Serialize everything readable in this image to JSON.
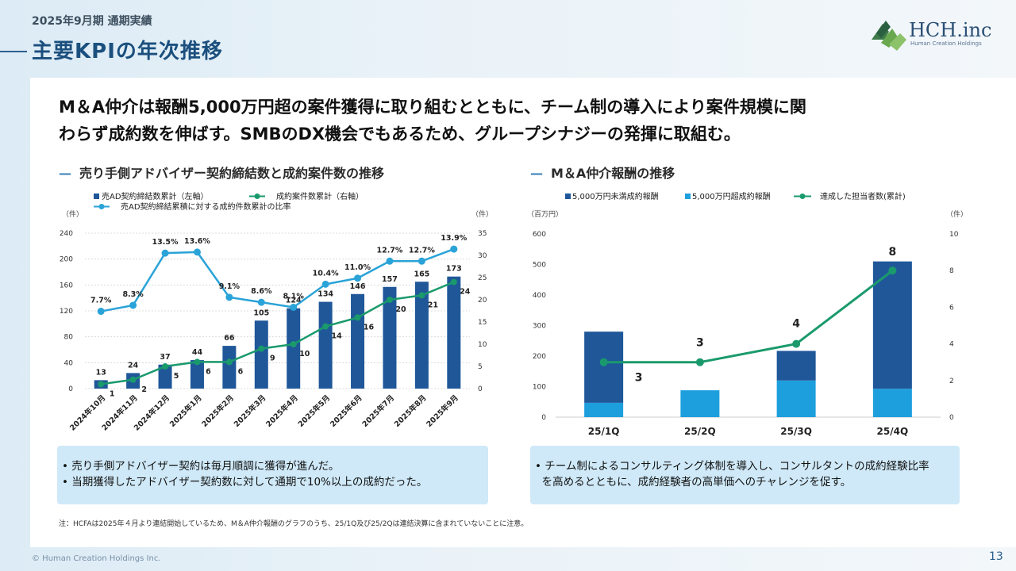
{
  "header": {
    "subtitle": "2025年9月期 通期実績",
    "title": "主要KPIの年次推移"
  },
  "logo": {
    "name": "HCH.inc",
    "tagline": "Human Creation Holdings"
  },
  "lead": {
    "line1": "M＆A仲介は報酬5,000万円超の案件獲得に取り組むとともに、チーム制の導入により案件規模に関",
    "line2": "わらず成約数を伸ばす。SMBのDX機会でもあるため、グループシナジーの発揮に取組む。"
  },
  "left_section": {
    "dash": "—",
    "title": "売り手側アドバイザー契約締結数と成約案件数の推移"
  },
  "right_section": {
    "dash": "—",
    "title": "M＆A仲介報酬の推移"
  },
  "left_notes": [
    "• 売り手側アドバイザー契約は毎月順調に獲得が進んだ。",
    "• 当期獲得したアドバイザー契約数に対して通期で10%以上の成約だった。"
  ],
  "right_notes": [
    "• チーム制によるコンサルティング体制を導入し、コンサルタントの成約経験比率",
    "  を高めるとともに、成約経験者の高単価へのチャレンジを促す。"
  ],
  "footnote": "注：HCFAは2025年４月より連結開始しているため、M＆A仲介報酬のグラフのうち、25/1Q及び25/2Qは連結決算に含まれていないことに注意。",
  "copyright": "© Human Creation Holdings Inc.",
  "page_number": "13",
  "colors": {
    "bar": "#1f5799",
    "bar_light": "#1d9fde",
    "green": "#1a9a6c",
    "cyan": "#2aa3d8"
  },
  "chart_data": [
    {
      "type": "bar",
      "title": "売り手側アドバイザー契約締結数と成約案件数の推移",
      "left_unit": "（件）",
      "right_unit": "（件）",
      "left_ticks": [
        0,
        40,
        80,
        120,
        160,
        200,
        240
      ],
      "right_ticks": [
        0,
        5,
        10,
        15,
        20,
        25,
        30,
        35
      ],
      "ylim": [
        0,
        240
      ],
      "y2lim": [
        0,
        35
      ],
      "categories": [
        "2024年10月",
        "2024年11月",
        "2024年12月",
        "2025年1月",
        "2025年2月",
        "2025年3月",
        "2025年4月",
        "2025年5月",
        "2025年6月",
        "2025年7月",
        "2025年8月",
        "2025年9月"
      ],
      "series": [
        {
          "name": "売AD契約締結数累計（左軸）",
          "kind": "bar",
          "axis": "left",
          "values": [
            13,
            24,
            37,
            44,
            66,
            105,
            124,
            134,
            146,
            157,
            165,
            173
          ]
        },
        {
          "name": "成約案件数累計（右軸）",
          "kind": "line",
          "axis": "right",
          "values": [
            1,
            2,
            5,
            6,
            6,
            9,
            10,
            14,
            16,
            20,
            21,
            24
          ]
        },
        {
          "name": "売AD契約締結累積に対する成約件数累計の比率",
          "kind": "line",
          "axis": "right",
          "values_pct": [
            7.7,
            8.3,
            13.5,
            13.6,
            9.1,
            8.6,
            8.1,
            10.4,
            11.0,
            12.7,
            12.7,
            13.9
          ],
          "labels": [
            "7.7%",
            "8.3%",
            "13.5%",
            "13.6%",
            "9.1%",
            "8.6%",
            "8.1%",
            "10.4%",
            "11.0%",
            "12.7%",
            "12.7%",
            "13.9%"
          ]
        }
      ]
    },
    {
      "type": "bar",
      "title": "M＆A仲介報酬の推移",
      "left_unit": "（百万円）",
      "right_unit": "（件）",
      "left_ticks": [
        0,
        100,
        200,
        300,
        400,
        500,
        600
      ],
      "right_ticks": [
        0,
        2,
        4,
        6,
        8,
        10
      ],
      "ylim": [
        0,
        600
      ],
      "y2lim": [
        0,
        10
      ],
      "categories": [
        "25/1Q",
        "25/2Q",
        "25/3Q",
        "25/4Q"
      ],
      "series": [
        {
          "name": "5,000万円未満成約報酬",
          "kind": "bar",
          "stack": "a",
          "values": [
            233,
            0,
            97,
            417
          ]
        },
        {
          "name": "5,000万円超成約報酬",
          "kind": "bar",
          "stack": "a",
          "values": [
            47,
            88,
            120,
            93
          ]
        },
        {
          "name": "達成した担当者数(累計)",
          "kind": "line",
          "axis": "right",
          "values": [
            3,
            3,
            4,
            8
          ]
        }
      ]
    }
  ]
}
